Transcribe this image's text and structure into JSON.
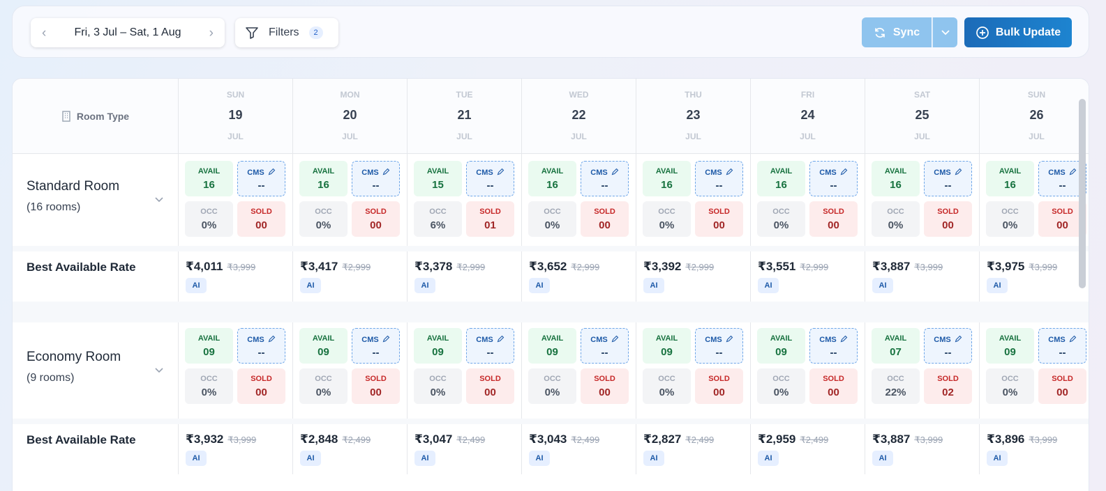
{
  "toolbar": {
    "date_range": "Fri, 3 Jul – Sat, 1 Aug",
    "filters_label": "Filters",
    "filters_count": "2",
    "sync_label": "Sync",
    "bulk_update_label": "Bulk Update"
  },
  "grid": {
    "room_type_header": "Room Type",
    "days": [
      {
        "dow": "SUN",
        "day": "19",
        "month": "JUL"
      },
      {
        "dow": "MON",
        "day": "20",
        "month": "JUL"
      },
      {
        "dow": "TUE",
        "day": "21",
        "month": "JUL"
      },
      {
        "dow": "WED",
        "day": "22",
        "month": "JUL"
      },
      {
        "dow": "THU",
        "day": "23",
        "month": "JUL"
      },
      {
        "dow": "FRI",
        "day": "24",
        "month": "JUL"
      },
      {
        "dow": "SAT",
        "day": "25",
        "month": "JUL"
      },
      {
        "dow": "SUN",
        "day": "26",
        "month": "JUL"
      }
    ],
    "labels": {
      "avail": "AVAIL",
      "cms": "CMS",
      "occ": "OCC",
      "sold": "SOLD",
      "ai": "AI"
    },
    "rooms": [
      {
        "name": "Standard Room",
        "count": "(16 rooms)",
        "rate_label": "Best Available Rate",
        "cells": [
          {
            "avail": "16",
            "cms": "--",
            "occ": "0%",
            "sold": "00",
            "price": "₹4,011",
            "old": "₹3,999"
          },
          {
            "avail": "16",
            "cms": "--",
            "occ": "0%",
            "sold": "00",
            "price": "₹3,417",
            "old": "₹2,999"
          },
          {
            "avail": "15",
            "cms": "--",
            "occ": "6%",
            "sold": "01",
            "price": "₹3,378",
            "old": "₹2,999"
          },
          {
            "avail": "16",
            "cms": "--",
            "occ": "0%",
            "sold": "00",
            "price": "₹3,652",
            "old": "₹2,999"
          },
          {
            "avail": "16",
            "cms": "--",
            "occ": "0%",
            "sold": "00",
            "price": "₹3,392",
            "old": "₹2,999"
          },
          {
            "avail": "16",
            "cms": "--",
            "occ": "0%",
            "sold": "00",
            "price": "₹3,551",
            "old": "₹2,999"
          },
          {
            "avail": "16",
            "cms": "--",
            "occ": "0%",
            "sold": "00",
            "price": "₹3,887",
            "old": "₹3,999"
          },
          {
            "avail": "16",
            "cms": "--",
            "occ": "0%",
            "sold": "00",
            "price": "₹3,975",
            "old": "₹3,999"
          }
        ]
      },
      {
        "name": "Economy Room",
        "count": "(9 rooms)",
        "rate_label": "Best Available Rate",
        "cells": [
          {
            "avail": "09",
            "cms": "--",
            "occ": "0%",
            "sold": "00",
            "price": "₹3,932",
            "old": "₹3,999"
          },
          {
            "avail": "09",
            "cms": "--",
            "occ": "0%",
            "sold": "00",
            "price": "₹2,848",
            "old": "₹2,499"
          },
          {
            "avail": "09",
            "cms": "--",
            "occ": "0%",
            "sold": "00",
            "price": "₹3,047",
            "old": "₹2,499"
          },
          {
            "avail": "09",
            "cms": "--",
            "occ": "0%",
            "sold": "00",
            "price": "₹3,043",
            "old": "₹2,499"
          },
          {
            "avail": "09",
            "cms": "--",
            "occ": "0%",
            "sold": "00",
            "price": "₹2,827",
            "old": "₹2,499"
          },
          {
            "avail": "09",
            "cms": "--",
            "occ": "0%",
            "sold": "00",
            "price": "₹2,959",
            "old": "₹2,499"
          },
          {
            "avail": "07",
            "cms": "--",
            "occ": "22%",
            "sold": "02",
            "price": "₹3,887",
            "old": "₹3,999"
          },
          {
            "avail": "09",
            "cms": "--",
            "occ": "0%",
            "sold": "00",
            "price": "₹3,896",
            "old": "₹3,999"
          }
        ]
      }
    ]
  }
}
